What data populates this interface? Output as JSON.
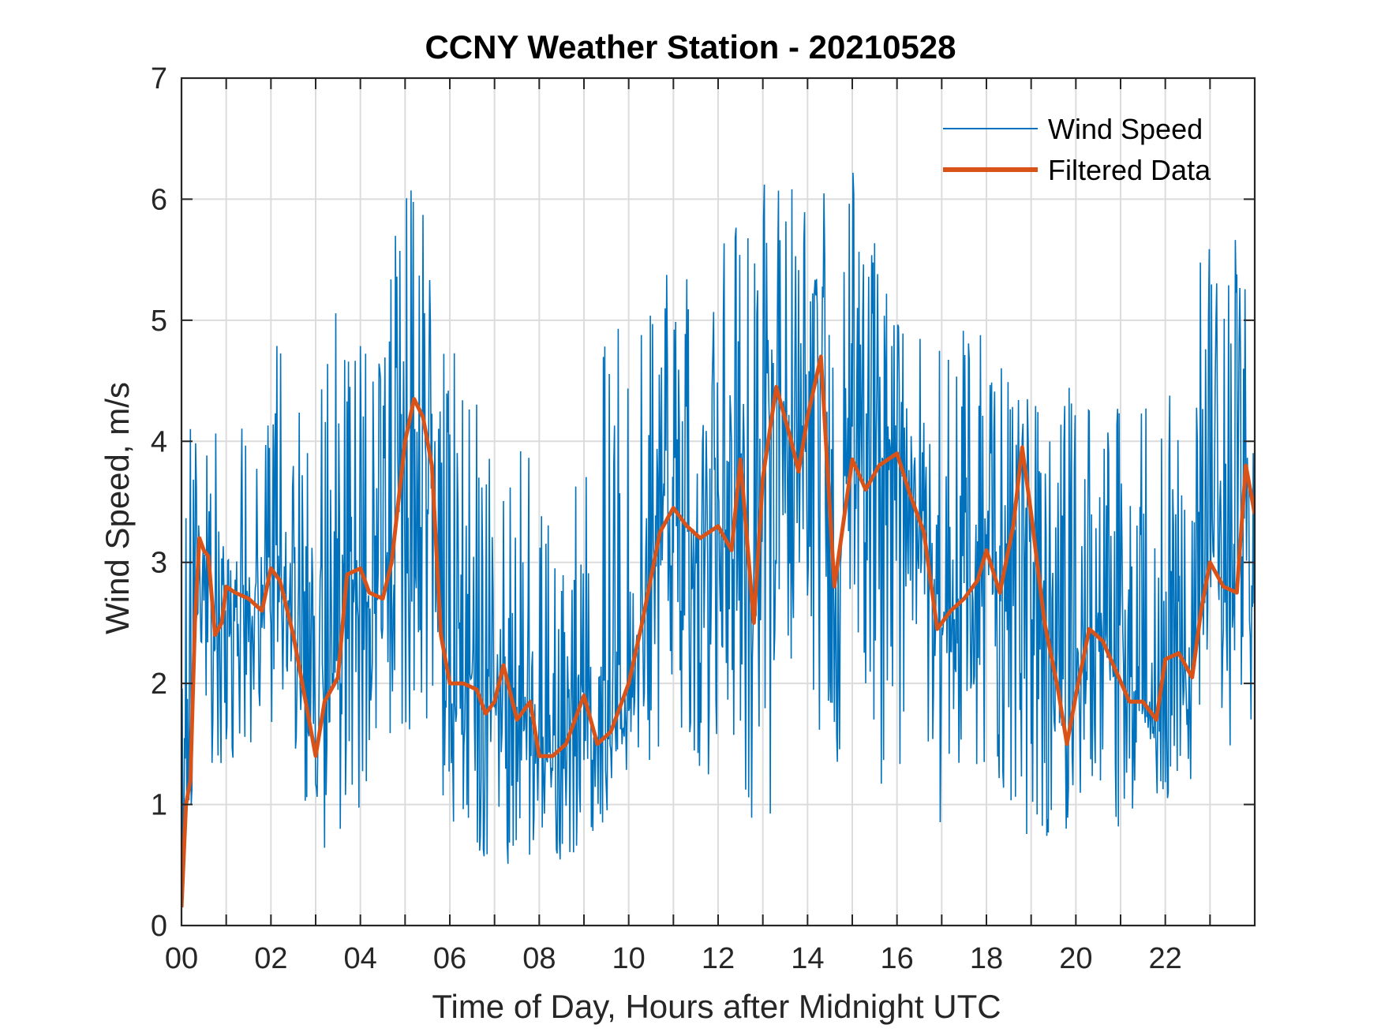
{
  "chart_data": {
    "type": "line",
    "title": "CCNY Weather Station - 20210528",
    "xlabel": "Time of Day, Hours after Midnight UTC",
    "ylabel": "Wind Speed, m/s",
    "xlim": [
      0,
      24
    ],
    "ylim": [
      0,
      7
    ],
    "xticks": [
      0,
      2,
      4,
      6,
      8,
      10,
      12,
      14,
      16,
      18,
      20,
      22
    ],
    "xtick_labels": [
      "00",
      "02",
      "04",
      "06",
      "08",
      "10",
      "12",
      "14",
      "16",
      "18",
      "20",
      "22"
    ],
    "yticks": [
      0,
      1,
      2,
      3,
      4,
      5,
      6,
      7
    ],
    "ytick_labels": [
      "0",
      "1",
      "2",
      "3",
      "4",
      "5",
      "6",
      "7"
    ],
    "grid": true,
    "legend_position": "top-right",
    "series": [
      {
        "name": "Wind Speed",
        "color": "#0072BD",
        "style": "noisy",
        "note": "high-frequency raw samples oscillating around the filtered trend, range ~0.3-6.4 m/s",
        "envelope_x": [
          0,
          0.5,
          1,
          1.5,
          2,
          2.5,
          3,
          3.5,
          4,
          4.5,
          5,
          5.5,
          6,
          7,
          8,
          9,
          10,
          11,
          12,
          13,
          13.5,
          14,
          15,
          16,
          17,
          18,
          19,
          20,
          21,
          22,
          23,
          23.5,
          24
        ],
        "envelope_lo": [
          0.5,
          1.5,
          1.0,
          1.5,
          1.6,
          1.2,
          0.5,
          0.4,
          1.0,
          1.5,
          1.6,
          1.6,
          0.8,
          0.5,
          0.5,
          0.5,
          1.2,
          1.5,
          1.0,
          0.4,
          1.8,
          1.5,
          1.2,
          1.0,
          0.8,
          1.0,
          0.6,
          0.8,
          0.8,
          0.9,
          1.2,
          1.0,
          1.5
        ],
        "envelope_hi": [
          4.5,
          4.0,
          4.2,
          4.3,
          5.2,
          4.8,
          4.2,
          5.4,
          5.2,
          5.6,
          6.2,
          6.1,
          4.8,
          4.3,
          3.8,
          4.0,
          5.7,
          5.4,
          5.6,
          6.4,
          6.4,
          6.2,
          6.3,
          5.0,
          4.8,
          5.1,
          4.4,
          4.5,
          4.4,
          4.6,
          5.8,
          5.8,
          5.5
        ]
      },
      {
        "name": "Filtered Data",
        "color": "#D95319",
        "x": [
          0,
          0.1,
          0.2,
          0.3,
          0.4,
          0.5,
          0.6,
          0.75,
          0.9,
          1.0,
          1.2,
          1.5,
          1.8,
          2.0,
          2.2,
          2.5,
          2.8,
          3.0,
          3.2,
          3.5,
          3.7,
          4.0,
          4.2,
          4.5,
          4.7,
          5.0,
          5.2,
          5.4,
          5.6,
          5.8,
          6.0,
          6.3,
          6.6,
          6.8,
          7.0,
          7.2,
          7.5,
          7.8,
          8.0,
          8.3,
          8.6,
          9.0,
          9.3,
          9.6,
          10.0,
          10.3,
          10.7,
          11.0,
          11.3,
          11.6,
          12.0,
          12.3,
          12.5,
          12.8,
          13.0,
          13.3,
          13.6,
          13.8,
          14.0,
          14.3,
          14.6,
          15.0,
          15.3,
          15.6,
          16.0,
          16.3,
          16.6,
          16.9,
          17.2,
          17.5,
          17.8,
          18.0,
          18.3,
          18.6,
          18.8,
          19.0,
          19.3,
          19.6,
          19.8,
          20.0,
          20.3,
          20.6,
          20.9,
          21.2,
          21.5,
          21.8,
          22.0,
          22.3,
          22.6,
          22.8,
          23.0,
          23.3,
          23.6,
          23.8,
          24.0
        ],
        "values": [
          0.15,
          1.0,
          1.2,
          2.5,
          3.2,
          3.1,
          3.05,
          2.4,
          2.5,
          2.8,
          2.75,
          2.7,
          2.6,
          2.95,
          2.85,
          2.4,
          1.8,
          1.4,
          1.85,
          2.05,
          2.9,
          2.95,
          2.75,
          2.7,
          3.0,
          4.0,
          4.35,
          4.2,
          3.8,
          2.4,
          2.0,
          2.0,
          1.95,
          1.75,
          1.85,
          2.15,
          1.7,
          1.85,
          1.4,
          1.4,
          1.5,
          1.9,
          1.5,
          1.6,
          2.0,
          2.5,
          3.25,
          3.45,
          3.3,
          3.2,
          3.3,
          3.1,
          3.85,
          2.5,
          3.7,
          4.45,
          4.05,
          3.75,
          4.2,
          4.7,
          2.8,
          3.85,
          3.6,
          3.8,
          3.9,
          3.55,
          3.25,
          2.45,
          2.6,
          2.7,
          2.85,
          3.1,
          2.75,
          3.3,
          3.95,
          3.4,
          2.5,
          1.95,
          1.5,
          1.9,
          2.45,
          2.35,
          2.1,
          1.85,
          1.85,
          1.7,
          2.2,
          2.25,
          2.05,
          2.6,
          3.0,
          2.8,
          2.75,
          3.8,
          3.4
        ]
      }
    ]
  }
}
